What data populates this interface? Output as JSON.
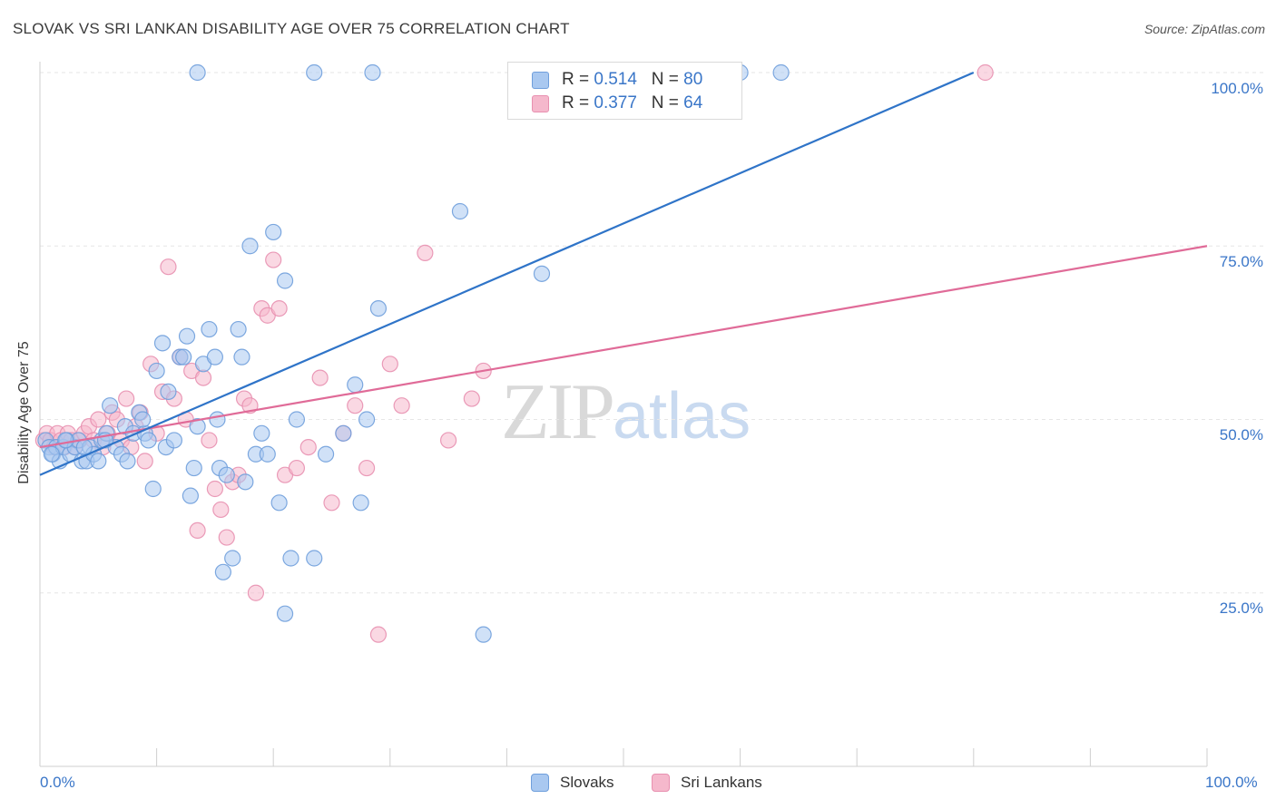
{
  "header": {
    "title": "SLOVAK VS SRI LANKAN DISABILITY AGE OVER 75 CORRELATION CHART",
    "source": "Source: ZipAtlas.com"
  },
  "watermark": {
    "zip": "ZIP",
    "atlas": "atlas"
  },
  "legend_top": {
    "slovak": {
      "r_label": "R = ",
      "r_value": "0.514",
      "n_label": "N = ",
      "n_value": "80"
    },
    "srilankan": {
      "r_label": "R = ",
      "r_value": "0.377",
      "n_label": "N = ",
      "n_value": "64"
    }
  },
  "legend_bottom": {
    "slovak": "Slovaks",
    "srilankan": "Sri Lankans"
  },
  "axes": {
    "ylabel": "Disability Age Over 75",
    "x_min_label": "0.0%",
    "x_max_label": "100.0%",
    "y_ticks": [
      "100.0%",
      "75.0%",
      "50.0%",
      "25.0%"
    ]
  },
  "colors": {
    "slovak_fill": "#a9c8f0",
    "slovak_stroke": "#6f9fdc",
    "slovak_line": "#2f74c8",
    "srilankan_fill": "#f5b8cc",
    "srilankan_stroke": "#e890b0",
    "srilankan_line": "#e06b98",
    "grid": "#e6e6e6",
    "tick_text": "#3a76c8"
  },
  "chart_data": {
    "type": "scatter",
    "title": "SLOVAK VS SRI LANKAN DISABILITY AGE OVER 75 CORRELATION CHART",
    "xlabel": "",
    "ylabel": "Disability Age Over 75",
    "xlim": [
      0,
      100
    ],
    "ylim": [
      0,
      100
    ],
    "grid": true,
    "legend": "top-center",
    "series": [
      {
        "name": "Slovaks",
        "r": 0.514,
        "n": 80,
        "trend": {
          "x": [
            0,
            80
          ],
          "y": [
            42,
            100
          ]
        },
        "points": [
          [
            0.5,
            47
          ],
          [
            0.8,
            46
          ],
          [
            1.1,
            45
          ],
          [
            1.4,
            46
          ],
          [
            1.7,
            44
          ],
          [
            2,
            46
          ],
          [
            2.3,
            47
          ],
          [
            2.6,
            45
          ],
          [
            3,
            46
          ],
          [
            3.3,
            47
          ],
          [
            3.6,
            44
          ],
          [
            4,
            44
          ],
          [
            4.3,
            46
          ],
          [
            4.6,
            45
          ],
          [
            5,
            44
          ],
          [
            5.3,
            47
          ],
          [
            5.7,
            48
          ],
          [
            6,
            52
          ],
          [
            6.5,
            46
          ],
          [
            7,
            45
          ],
          [
            7.3,
            49
          ],
          [
            7.5,
            44
          ],
          [
            8,
            48
          ],
          [
            8.5,
            51
          ],
          [
            9,
            48
          ],
          [
            9.3,
            47
          ],
          [
            9.7,
            40
          ],
          [
            10,
            57
          ],
          [
            10.5,
            61
          ],
          [
            10.8,
            46
          ],
          [
            11,
            54
          ],
          [
            11.5,
            47
          ],
          [
            12,
            59
          ],
          [
            12.3,
            59
          ],
          [
            12.6,
            62
          ],
          [
            12.9,
            39
          ],
          [
            13.2,
            43
          ],
          [
            13.5,
            49
          ],
          [
            14,
            58
          ],
          [
            14.5,
            63
          ],
          [
            15,
            59
          ],
          [
            15.2,
            50
          ],
          [
            15.4,
            43
          ],
          [
            15.7,
            28
          ],
          [
            16,
            42
          ],
          [
            16.5,
            30
          ],
          [
            17,
            63
          ],
          [
            17.3,
            59
          ],
          [
            17.6,
            41
          ],
          [
            18,
            75
          ],
          [
            18.5,
            45
          ],
          [
            19,
            48
          ],
          [
            19.5,
            45
          ],
          [
            20,
            77
          ],
          [
            20.5,
            38
          ],
          [
            21,
            70
          ],
          [
            21,
            22
          ],
          [
            21.5,
            30
          ],
          [
            22,
            50
          ],
          [
            23.5,
            30
          ],
          [
            24.5,
            45
          ],
          [
            26,
            48
          ],
          [
            27,
            55
          ],
          [
            27.5,
            38
          ],
          [
            28,
            50
          ],
          [
            29,
            66
          ],
          [
            36,
            80
          ],
          [
            38,
            19
          ],
          [
            43,
            71
          ],
          [
            13.5,
            100
          ],
          [
            23.5,
            100
          ],
          [
            28.5,
            100
          ],
          [
            49,
            100
          ],
          [
            60,
            100
          ],
          [
            63.5,
            100
          ],
          [
            1,
            45
          ],
          [
            2.2,
            47
          ],
          [
            3.8,
            46
          ],
          [
            5.6,
            47
          ],
          [
            8.8,
            50
          ]
        ]
      },
      {
        "name": "Sri Lankans",
        "r": 0.377,
        "n": 64,
        "trend": {
          "x": [
            0,
            100
          ],
          "y": [
            46,
            75
          ]
        },
        "points": [
          [
            0.3,
            47
          ],
          [
            0.6,
            48
          ],
          [
            0.9,
            47
          ],
          [
            1.2,
            46
          ],
          [
            1.5,
            48
          ],
          [
            1.8,
            47
          ],
          [
            2.1,
            46
          ],
          [
            2.4,
            48
          ],
          [
            2.7,
            47
          ],
          [
            3,
            46
          ],
          [
            3.4,
            47
          ],
          [
            3.8,
            48
          ],
          [
            4.2,
            49
          ],
          [
            4.6,
            47
          ],
          [
            5,
            50
          ],
          [
            5.4,
            46
          ],
          [
            5.8,
            48
          ],
          [
            6.2,
            51
          ],
          [
            6.6,
            50
          ],
          [
            7,
            47
          ],
          [
            7.4,
            53
          ],
          [
            7.8,
            46
          ],
          [
            8.2,
            49
          ],
          [
            8.6,
            51
          ],
          [
            9,
            44
          ],
          [
            9.5,
            58
          ],
          [
            10,
            48
          ],
          [
            10.5,
            54
          ],
          [
            11,
            72
          ],
          [
            11.5,
            53
          ],
          [
            12,
            59
          ],
          [
            12.5,
            50
          ],
          [
            13,
            57
          ],
          [
            13.5,
            34
          ],
          [
            14,
            56
          ],
          [
            14.5,
            47
          ],
          [
            15,
            40
          ],
          [
            15.5,
            37
          ],
          [
            16,
            33
          ],
          [
            16.5,
            41
          ],
          [
            17,
            42
          ],
          [
            17.5,
            53
          ],
          [
            18,
            52
          ],
          [
            18.5,
            25
          ],
          [
            19,
            66
          ],
          [
            19.5,
            65
          ],
          [
            20,
            73
          ],
          [
            20.5,
            66
          ],
          [
            21,
            42
          ],
          [
            22,
            43
          ],
          [
            23,
            46
          ],
          [
            24,
            56
          ],
          [
            25,
            38
          ],
          [
            26,
            48
          ],
          [
            27,
            52
          ],
          [
            28,
            43
          ],
          [
            29,
            19
          ],
          [
            30,
            58
          ],
          [
            31,
            52
          ],
          [
            33,
            74
          ],
          [
            35,
            47
          ],
          [
            37,
            53
          ],
          [
            38,
            57
          ],
          [
            81,
            100
          ]
        ]
      }
    ]
  }
}
